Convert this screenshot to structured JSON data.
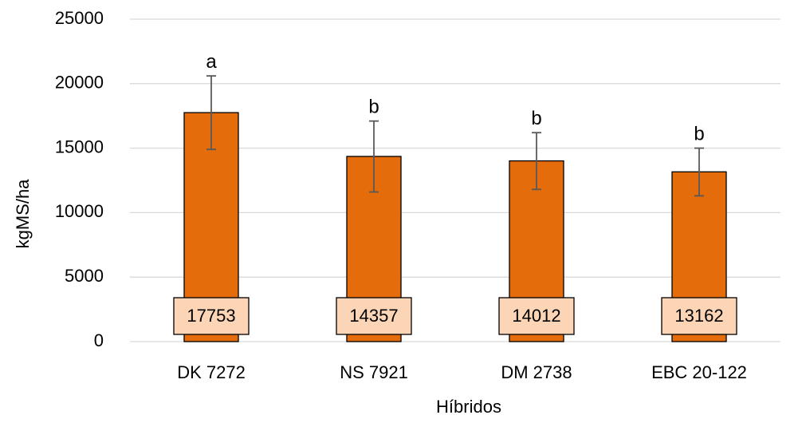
{
  "chart_data": {
    "type": "bar",
    "title": "",
    "xlabel": "Híbridos",
    "ylabel": "kgMS/ha",
    "ylim": [
      0,
      25000
    ],
    "yticks": [
      0,
      5000,
      10000,
      15000,
      20000,
      25000
    ],
    "ytick_labels": [
      "0",
      "5000",
      "10000",
      "15000",
      "20000",
      "25000"
    ],
    "grid": true,
    "legend": "none",
    "categories": [
      "DK 7272",
      "NS 7921",
      "DM 2738",
      "EBC 20-122"
    ],
    "values": [
      17753,
      14357,
      14012,
      13162
    ],
    "data_labels": [
      "17753",
      "14357",
      "14012",
      "13162"
    ],
    "error_upper": [
      20600,
      17100,
      16200,
      15000
    ],
    "error_lower": [
      14900,
      11600,
      11800,
      11300
    ],
    "significance_letters": [
      "a",
      "b",
      "b",
      "b"
    ],
    "colors": {
      "bar_fill": "#e46c0a",
      "bar_stroke": "#000000",
      "label_fill": "#fbd5b5",
      "grid": "#d9d9d9",
      "error_bar": "#595959"
    }
  }
}
